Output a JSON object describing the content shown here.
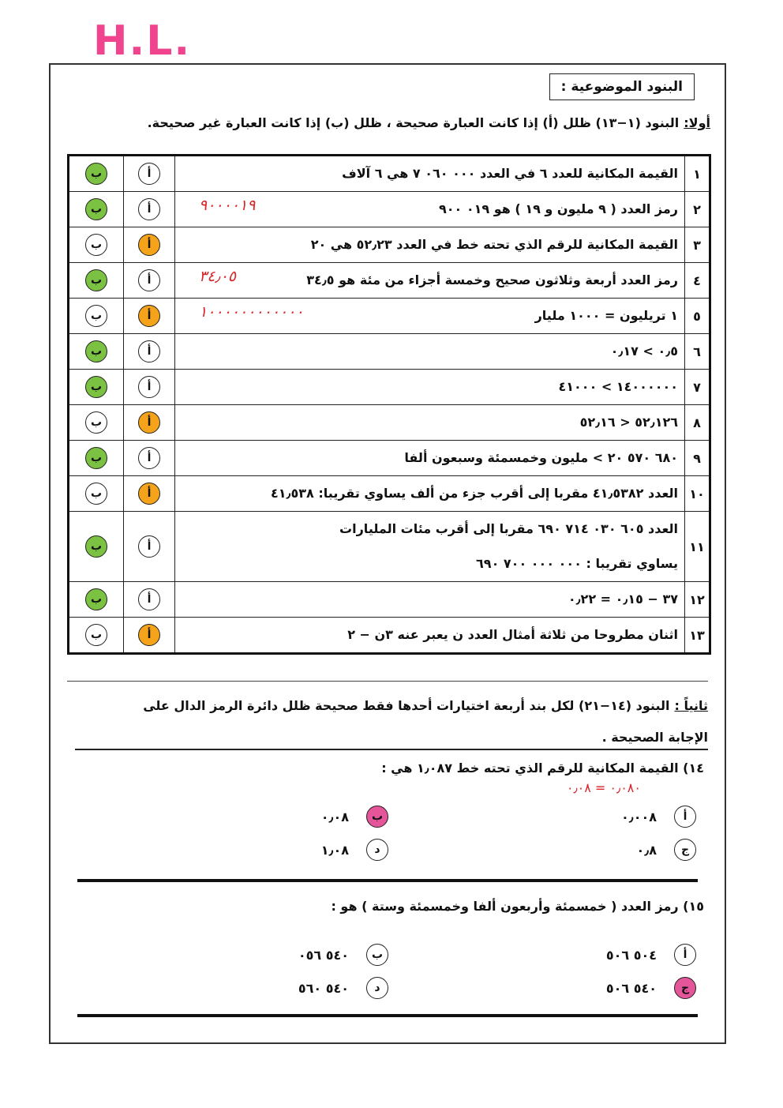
{
  "handwriting": "H.L.",
  "section1": {
    "title": "البنود الموضوعية :",
    "label": "أولا:",
    "instruction": "البنود (١−١٣) ظلل (أ) إذا كانت العبارة صحيحة ، ظلل (ب) إذا كانت العبارة غير صحيحة."
  },
  "table": {
    "choice_a": "أ",
    "choice_b": "ب",
    "shade_colors": {
      "a": "#f5a31a",
      "b": "#7cc242"
    },
    "rows": [
      {
        "number": "١",
        "lines": [
          "القيمة المكانية للعدد ٦ في العدد ٠٠٠ ٠٦٠ ٧ هي ٦ آلاف"
        ],
        "shaded": "b"
      },
      {
        "number": "٢",
        "lines": [
          "رمز العدد ( ٩ مليون و ١٩ ) هو ٠١٩ ٩٠٠"
        ],
        "shaded": "b",
        "note": "٩٠٠٠٠١٩"
      },
      {
        "number": "٣",
        "lines": [
          "القيمة المكانية للرقم الذي تحته خط في العدد ٥٢٫٢٣ هي ٢٠"
        ],
        "shaded": "a"
      },
      {
        "number": "٤",
        "lines": [
          "رمز العدد أربعة وثلاثون صحيح وخمسة أجزاء من مئة هو ٣٤٫٥"
        ],
        "shaded": "b",
        "note": "٣٤٫٠٥"
      },
      {
        "number": "٥",
        "lines": [
          "١ تريليون = ١٠٠٠ مليار"
        ],
        "shaded": "a",
        "note": "١٠٠٠٠٠٠٠٠٠٠٠٠"
      },
      {
        "number": "٦",
        "lines": [
          "٠٫٥ > ٠٫١٧"
        ],
        "shaded": "b"
      },
      {
        "number": "٧",
        "lines": [
          "١٤٠٠٠٠٠٠ > ٤١٠٠٠"
        ],
        "shaded": "b"
      },
      {
        "number": "٨",
        "lines": [
          "٥٢٫١٢٦ < ٥٢٫١٦"
        ],
        "shaded": "a"
      },
      {
        "number": "٩",
        "lines": [
          "٦٨٠ ٥٧٠ ٢٠ > مليون وخمسمئة وسبعون ألفا"
        ],
        "shaded": "b"
      },
      {
        "number": "١٠",
        "lines": [
          "العدد ٤١٫٥٣٨٢ مقربا إلى أقرب جزء من ألف يساوي تقريبا: ٤١٫٥٣٨"
        ],
        "shaded": "a"
      },
      {
        "number": "١١",
        "lines": [
          "العدد ٦٠٥ ٠٣٠ ٧١٤ ٦٩٠ مقربا إلى أقرب مئات المليارات",
          "يساوي تقريبا : ٠٠٠ ٠٠٠ ٧٠٠ ٦٩٠"
        ],
        "shaded": "b"
      },
      {
        "number": "١٢",
        "lines": [
          "٣٧ − ٠٫١٥ = ٠٫٢٢"
        ],
        "shaded": "b"
      },
      {
        "number": "١٣",
        "lines": [
          "اثنان مطروحا من ثلاثة أمثال العدد ن يعبر عنه ٣ن − ٢"
        ],
        "shaded": "a"
      }
    ]
  },
  "section2": {
    "label": "ثانياً :",
    "instruction": "البنود (١٤−٢١) لكل بند أربعة اختيارات أحدها فقط صحيحة ظلل دائرة الرمز الدال على الإجابة الصحيحة .",
    "shade_color": "#e4559a",
    "questions": [
      {
        "number": "١٤)",
        "text": "القيمة المكانية للرقم الذي تحته خط ١٫٠٨٧ هي :",
        "note": "٠٫٠٨٠ = ٠٫٠٨",
        "shaded": 1,
        "options": [
          {
            "letter": "أ",
            "value": "٠٫٠٠٨"
          },
          {
            "letter": "ب",
            "value": "٠٫٠٨"
          },
          {
            "letter": "ج",
            "value": "٠٫٨"
          },
          {
            "letter": "د",
            "value": "١٫٠٨"
          }
        ]
      },
      {
        "number": "١٥)",
        "text": "رمز العدد ( خمسمئة وأربعون ألفا وخمسمئة وستة ) هو :",
        "shaded": 2,
        "options": [
          {
            "letter": "أ",
            "value": "٥٠٤ ٥٠٦"
          },
          {
            "letter": "ب",
            "value": "٥٤٠ ٠٥٦"
          },
          {
            "letter": "ج",
            "value": "٥٤٠ ٥٠٦"
          },
          {
            "letter": "د",
            "value": "٥٤٠ ٥٦٠"
          }
        ]
      }
    ]
  }
}
